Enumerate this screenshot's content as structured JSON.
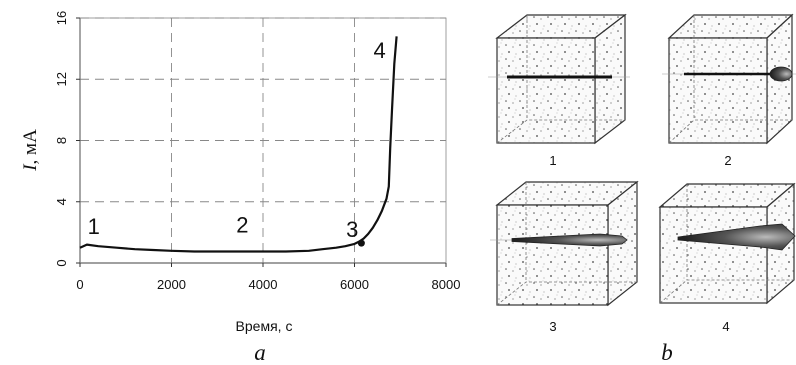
{
  "chart_data": {
    "type": "line",
    "xlabel": "Время, с",
    "ylabel_italic": "I",
    "ylabel_rest": ", мА",
    "xlim": [
      0,
      8000
    ],
    "ylim": [
      0,
      16
    ],
    "xticks": [
      0,
      2000,
      4000,
      6000,
      8000
    ],
    "yticks": [
      0,
      4,
      8,
      12,
      16
    ],
    "grid": true,
    "series": [
      {
        "x": [
          0,
          150,
          400,
          800,
          1200,
          1600,
          2000,
          2500,
          3000,
          3500,
          4000,
          4500,
          5000,
          5300,
          5600,
          5800,
          6000,
          6100,
          6200,
          6300,
          6400,
          6500,
          6600,
          6700,
          6750,
          6780,
          6820,
          6870,
          6920
        ],
        "y": [
          1.0,
          1.2,
          1.1,
          1.0,
          0.9,
          0.85,
          0.8,
          0.75,
          0.75,
          0.75,
          0.75,
          0.75,
          0.8,
          0.9,
          1.0,
          1.1,
          1.25,
          1.4,
          1.6,
          1.9,
          2.3,
          2.8,
          3.4,
          4.2,
          5.0,
          7.5,
          10.0,
          13.0,
          14.8
        ]
      }
    ],
    "annotations": [
      {
        "text": "1",
        "x": 300,
        "y": 1.9
      },
      {
        "text": "2",
        "x": 3550,
        "y": 2.0
      },
      {
        "text": "3",
        "x": 5950,
        "y": 1.7
      },
      {
        "text": "4",
        "x": 6550,
        "y": 13.4
      }
    ],
    "panel_label": "a"
  },
  "figure_b": {
    "panel_label": "b",
    "cube_labels": [
      "1",
      "2",
      "3",
      "4"
    ]
  }
}
